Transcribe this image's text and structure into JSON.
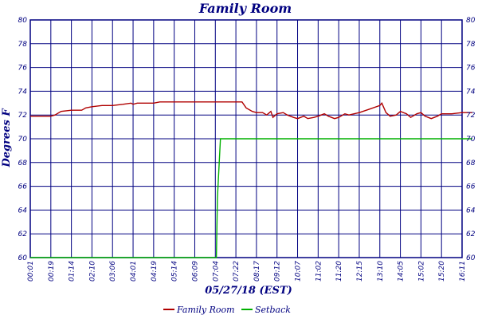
{
  "chart_data": {
    "type": "line",
    "title": "Family Room",
    "xlabel": "05/27/18 (EST)",
    "ylabel": "Degrees F",
    "ylim": [
      60,
      80
    ],
    "yticks": [
      60,
      62,
      64,
      66,
      68,
      70,
      72,
      74,
      76,
      78,
      80
    ],
    "xtick_labels": [
      "00:01",
      "00:19",
      "01:14",
      "02:10",
      "03:06",
      "04:01",
      "04:19",
      "05:14",
      "06:09",
      "07:04",
      "07:22",
      "08:17",
      "09:12",
      "10:07",
      "11:02",
      "11:20",
      "12:15",
      "13:10",
      "14:05",
      "15:02",
      "15:20",
      "16:11"
    ],
    "grid": true,
    "legend_position": "bottom",
    "series": [
      {
        "name": "Family Room",
        "color": "#b00000",
        "points": [
          [
            0,
            71.9
          ],
          [
            1,
            71.9
          ],
          [
            1.2,
            72.0
          ],
          [
            1.5,
            72.3
          ],
          [
            2,
            72.4
          ],
          [
            2.5,
            72.4
          ],
          [
            2.7,
            72.6
          ],
          [
            3,
            72.7
          ],
          [
            3.5,
            72.8
          ],
          [
            4,
            72.8
          ],
          [
            4.5,
            72.9
          ],
          [
            4.9,
            73.0
          ],
          [
            5,
            72.9
          ],
          [
            5.2,
            73.0
          ],
          [
            5.5,
            73.0
          ],
          [
            6,
            73.0
          ],
          [
            6.3,
            73.1
          ],
          [
            7,
            73.1
          ],
          [
            8,
            73.1
          ],
          [
            9,
            73.1
          ],
          [
            10.3,
            73.1
          ],
          [
            10.5,
            72.6
          ],
          [
            10.8,
            72.3
          ],
          [
            11,
            72.2
          ],
          [
            11.3,
            72.2
          ],
          [
            11.5,
            72.0
          ],
          [
            11.7,
            72.3
          ],
          [
            11.8,
            71.8
          ],
          [
            12,
            72.1
          ],
          [
            12.3,
            72.2
          ],
          [
            12.5,
            72.0
          ],
          [
            12.8,
            71.8
          ],
          [
            13,
            71.7
          ],
          [
            13.3,
            71.9
          ],
          [
            13.5,
            71.7
          ],
          [
            13.8,
            71.8
          ],
          [
            14,
            71.9
          ],
          [
            14.3,
            72.1
          ],
          [
            14.5,
            71.9
          ],
          [
            14.8,
            71.7
          ],
          [
            15,
            71.8
          ],
          [
            15.3,
            72.1
          ],
          [
            15.5,
            72.0
          ],
          [
            16,
            72.2
          ],
          [
            16.5,
            72.5
          ],
          [
            17,
            72.8
          ],
          [
            17.1,
            73.0
          ],
          [
            17.3,
            72.2
          ],
          [
            17.5,
            71.9
          ],
          [
            17.8,
            72.0
          ],
          [
            18,
            72.3
          ],
          [
            18.3,
            72.1
          ],
          [
            18.5,
            71.8
          ],
          [
            18.8,
            72.1
          ],
          [
            19,
            72.2
          ],
          [
            19.2,
            71.9
          ],
          [
            19.5,
            71.7
          ],
          [
            19.8,
            71.9
          ],
          [
            20,
            72.1
          ],
          [
            20.5,
            72.1
          ],
          [
            21,
            72.2
          ],
          [
            21.5,
            72.2
          ]
        ]
      },
      {
        "name": "Setback",
        "color": "#00b000",
        "points": [
          [
            0,
            60
          ],
          [
            9.05,
            60
          ],
          [
            9.1,
            65
          ],
          [
            9.25,
            70
          ],
          [
            21.5,
            70
          ]
        ]
      }
    ]
  }
}
